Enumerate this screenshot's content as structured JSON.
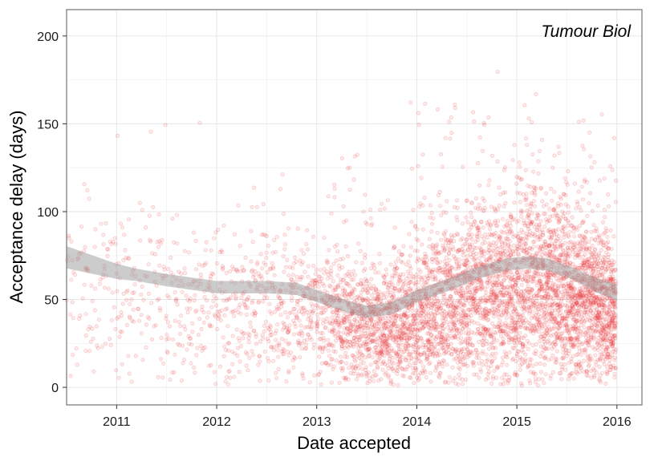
{
  "chart_data": {
    "type": "scatter",
    "annotation": "Tumour Biol",
    "xlabel": "Date accepted",
    "ylabel": "Acceptance delay (days)",
    "xlim": [
      2010.5,
      2016.25
    ],
    "ylim": [
      -10,
      215
    ],
    "x_ticks": [
      2011,
      2012,
      2013,
      2014,
      2015,
      2016
    ],
    "x_tick_labels": [
      "2011",
      "2012",
      "2013",
      "2014",
      "2015",
      "2016"
    ],
    "y_ticks": [
      0,
      50,
      100,
      150,
      200
    ],
    "y_tick_labels": [
      "0",
      "50",
      "100",
      "150",
      "200"
    ],
    "grid": true,
    "point_color": "#e8262a",
    "trend_color": "#999999",
    "density_profile": [
      {
        "x": 2010.5,
        "points_per_year": 170
      },
      {
        "x": 2011.0,
        "points_per_year": 200
      },
      {
        "x": 2012.0,
        "points_per_year": 290
      },
      {
        "x": 2013.0,
        "points_per_year": 580
      },
      {
        "x": 2013.25,
        "points_per_year": 1100
      },
      {
        "x": 2014.0,
        "points_per_year": 1500
      },
      {
        "x": 2015.0,
        "points_per_year": 1750
      },
      {
        "x": 2016.0,
        "points_per_year": 2300
      }
    ],
    "trend": [
      {
        "x": 2010.5,
        "y": 74
      },
      {
        "x": 2011.0,
        "y": 66
      },
      {
        "x": 2011.5,
        "y": 61
      },
      {
        "x": 2012.0,
        "y": 57
      },
      {
        "x": 2012.5,
        "y": 57
      },
      {
        "x": 2012.8,
        "y": 56
      },
      {
        "x": 2013.0,
        "y": 52
      },
      {
        "x": 2013.3,
        "y": 46
      },
      {
        "x": 2013.5,
        "y": 43
      },
      {
        "x": 2013.75,
        "y": 45
      },
      {
        "x": 2014.0,
        "y": 52
      },
      {
        "x": 2014.3,
        "y": 58
      },
      {
        "x": 2014.6,
        "y": 65
      },
      {
        "x": 2014.9,
        "y": 70
      },
      {
        "x": 2015.1,
        "y": 71
      },
      {
        "x": 2015.3,
        "y": 70
      },
      {
        "x": 2015.55,
        "y": 65
      },
      {
        "x": 2015.8,
        "y": 58
      },
      {
        "x": 2016.0,
        "y": 54
      }
    ]
  }
}
